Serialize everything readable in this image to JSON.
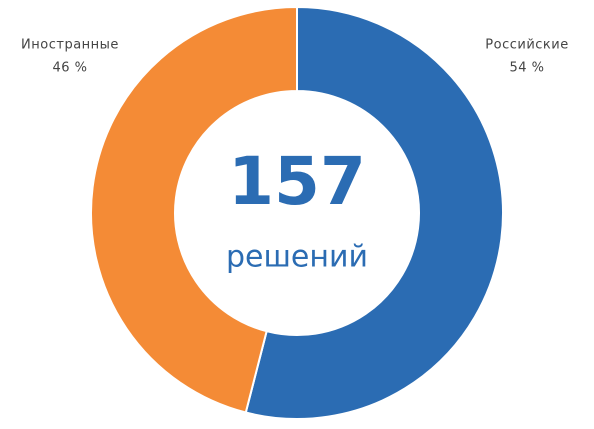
{
  "chart_data": {
    "type": "pie",
    "categories": [
      "Российские",
      "Иностранные"
    ],
    "values": [
      54,
      46
    ],
    "value_labels": [
      "54 %",
      "46 %"
    ],
    "colors": [
      "#2b6cb3",
      "#f48b36"
    ],
    "center_value": 157,
    "center_label": "решений"
  }
}
